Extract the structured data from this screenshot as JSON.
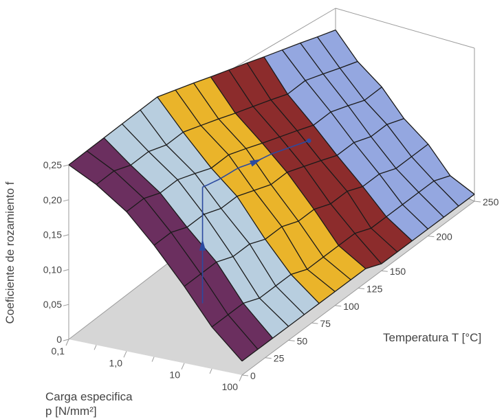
{
  "chart_data": {
    "type": "surface-3d",
    "title": "",
    "zlabel": "Coeficiente de rozamiento f",
    "xlabel_line1": "Carga especifica",
    "xlabel_line2": "p [N/mm²]",
    "ylabel": "Temperatura T [°C]",
    "z_ticks": [
      "0",
      "0,05",
      "0,10",
      "0,15",
      "0,20",
      "0,25"
    ],
    "z_tick_values": [
      0,
      0.05,
      0.1,
      0.15,
      0.2,
      0.25
    ],
    "x_ticks": [
      "0,1",
      "1,0",
      "10",
      "100"
    ],
    "x_tick_log_values": [
      0.1,
      1.0,
      10,
      100
    ],
    "y_ticks": [
      "0",
      "25",
      "50",
      "75",
      "100",
      "125",
      "150",
      "200",
      "250"
    ],
    "y_tick_values": [
      0,
      25,
      50,
      75,
      100,
      125,
      150,
      200,
      250
    ],
    "zlim": [
      0,
      0.25
    ],
    "ylim": [
      0,
      250
    ],
    "surface_rows": [
      {
        "p": 0.1,
        "f": [
          0.25,
          0.25,
          0.25,
          0.25,
          0.25,
          0.25,
          0.24,
          0.23,
          0.22,
          0.21,
          0.2,
          0.19,
          0.18,
          0.17,
          0.16,
          0.15
        ]
      },
      {
        "p": 0.3,
        "f": [
          0.23,
          0.23,
          0.22,
          0.22,
          0.21,
          0.21,
          0.2,
          0.19,
          0.18,
          0.17,
          0.16,
          0.15,
          0.15,
          0.14,
          0.13,
          0.12
        ]
      },
      {
        "p": 1.0,
        "f": [
          0.2,
          0.2,
          0.19,
          0.19,
          0.18,
          0.17,
          0.17,
          0.16,
          0.15,
          0.14,
          0.13,
          0.12,
          0.12,
          0.11,
          0.1,
          0.1
        ]
      },
      {
        "p": 3.0,
        "f": [
          0.16,
          0.16,
          0.15,
          0.15,
          0.14,
          0.14,
          0.13,
          0.12,
          0.12,
          0.11,
          0.1,
          0.09,
          0.09,
          0.08,
          0.08,
          0.07
        ]
      },
      {
        "p": 10,
        "f": [
          0.11,
          0.11,
          0.11,
          0.1,
          0.1,
          0.09,
          0.09,
          0.08,
          0.08,
          0.07,
          0.07,
          0.06,
          0.06,
          0.05,
          0.05,
          0.05
        ]
      },
      {
        "p": 30,
        "f": [
          0.06,
          0.06,
          0.06,
          0.05,
          0.05,
          0.05,
          0.04,
          0.04,
          0.04,
          0.04,
          0.03,
          0.03,
          0.03,
          0.03,
          0.03,
          0.02
        ]
      },
      {
        "p": 100,
        "f": [
          0.02,
          0.02,
          0.02,
          0.02,
          0.02,
          0.02,
          0.02,
          0.02,
          0.02,
          0.01,
          0.01,
          0.01,
          0.01,
          0.01,
          0.01,
          0.01
        ]
      }
    ],
    "surface_temperatures": [
      0,
      17,
      33,
      50,
      67,
      83,
      100,
      117,
      133,
      150,
      167,
      183,
      200,
      217,
      233,
      250
    ],
    "color_bands": [
      {
        "max_temperature": 40,
        "color": "#6b2f5f"
      },
      {
        "max_temperature": 90,
        "color": "#b8cedf"
      },
      {
        "max_temperature": 130,
        "color": "#eab42a"
      },
      {
        "max_temperature": 185,
        "color": "#8c2c2c"
      },
      {
        "max_temperature": 250,
        "color": "#94a7e0"
      }
    ],
    "example_path": {
      "p": 1.5,
      "T_start": 65,
      "T_end": 170,
      "color": "#2b4aa0"
    },
    "floor_color": "#d6d6d6",
    "frame_color": "#9a9a9a"
  }
}
